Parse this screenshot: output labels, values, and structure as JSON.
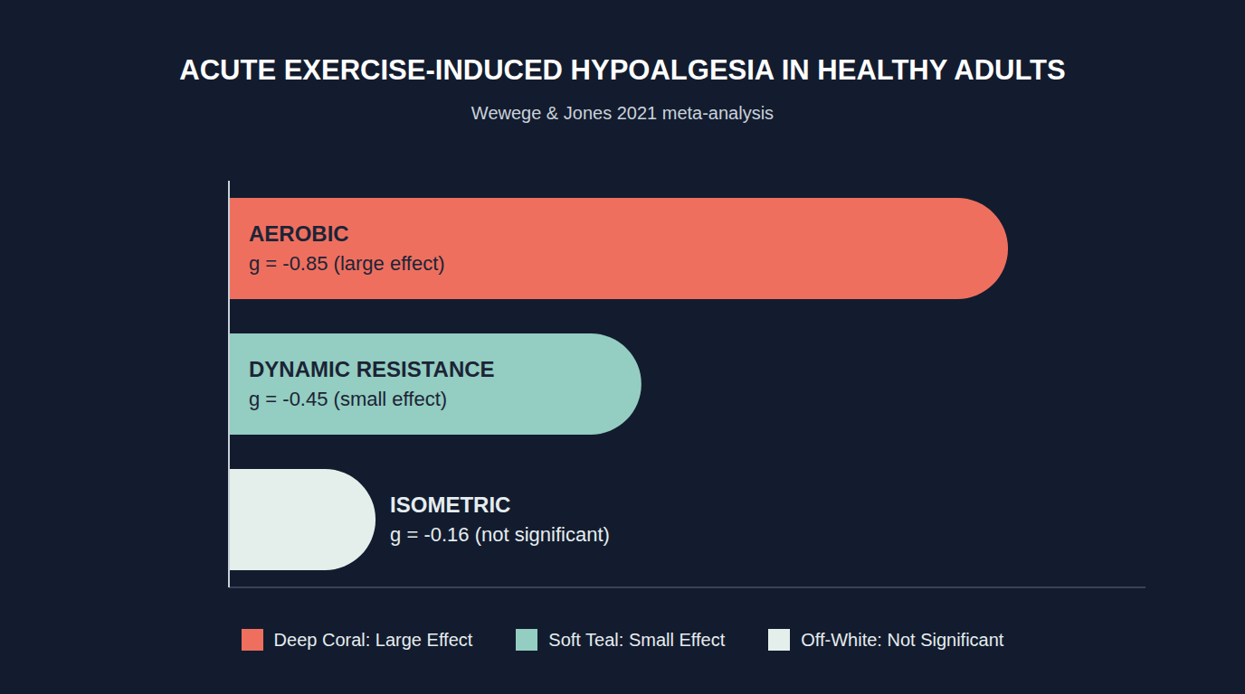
{
  "chart_data": {
    "type": "bar",
    "orientation": "horizontal",
    "stacked": true,
    "title": "ACUTE EXERCISE-INDUCED HYPOALGESIA IN HEALTHY ADULTS",
    "subtitle": "Wewege & Jones 2021 meta-analysis",
    "categories": [
      "AEROBIC",
      "DYNAMIC RESISTANCE",
      "ISOMETRIC"
    ],
    "series": [
      {
        "name": "Deep Coral: Large Effect",
        "color": "#ef6f5f",
        "values": [
          -0.85,
          null,
          null
        ],
        "value_labels": [
          "g = -0.85 (large effect)",
          null,
          null
        ]
      },
      {
        "name": "Soft Teal: Small Effect",
        "color": "#94cdc1",
        "values": [
          null,
          -0.45,
          null
        ],
        "value_labels": [
          null,
          "g = -0.45 (small effect)",
          null
        ]
      },
      {
        "name": "Off-White: Not Significant",
        "color": "#e4efec",
        "values": [
          null,
          null,
          -0.16
        ],
        "value_labels": [
          null,
          null,
          "g = -0.16 (not significant)"
        ]
      }
    ],
    "xlim": [
      -1,
      0
    ],
    "tick_labels": false,
    "data_labels": true,
    "legend": "bottom",
    "grid": false
  }
}
